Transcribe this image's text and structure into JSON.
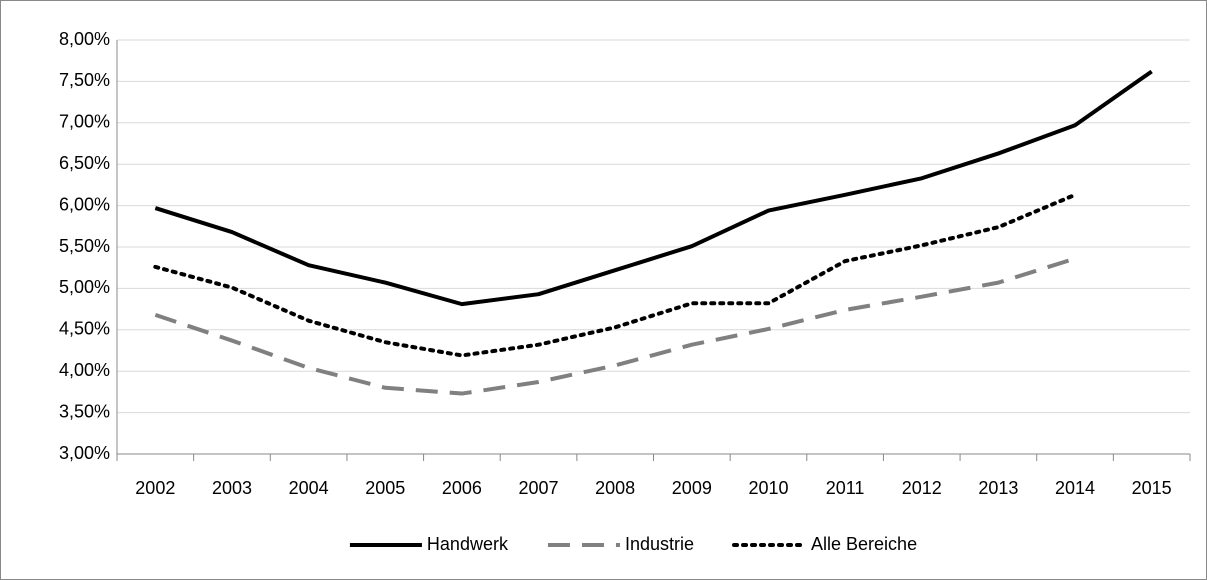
{
  "chart_data": {
    "type": "line",
    "categories": [
      "2002",
      "2003",
      "2004",
      "2005",
      "2006",
      "2007",
      "2008",
      "2009",
      "2010",
      "2011",
      "2012",
      "2013",
      "2014",
      "2015"
    ],
    "series": [
      {
        "name": "Handwerk",
        "color": "#000000",
        "dash": "solid",
        "values": [
          5.97,
          5.68,
          5.28,
          5.07,
          4.81,
          4.93,
          5.22,
          5.51,
          5.94,
          6.13,
          6.33,
          6.63,
          6.97,
          7.62
        ]
      },
      {
        "name": "Industrie",
        "color": "#808080",
        "dash": "dashed",
        "values": [
          4.68,
          4.37,
          4.04,
          3.8,
          3.73,
          3.87,
          4.07,
          4.32,
          4.51,
          4.74,
          4.9,
          5.07,
          5.36,
          null
        ]
      },
      {
        "name": "Alle Bereiche",
        "color": "#000000",
        "dash": "dotted",
        "values": [
          5.26,
          5.01,
          4.61,
          4.35,
          4.19,
          4.32,
          4.53,
          4.82,
          4.82,
          5.33,
          5.52,
          5.74,
          6.13,
          null
        ]
      }
    ],
    "ylim": [
      3,
      8
    ],
    "yticks": [
      {
        "value": 3,
        "label": "3,00%"
      },
      {
        "value": 3.5,
        "label": "3,50%"
      },
      {
        "value": 4,
        "label": "4,00%"
      },
      {
        "value": 4.5,
        "label": "4,50%"
      },
      {
        "value": 5,
        "label": "5,00%"
      },
      {
        "value": 5.5,
        "label": "5,50%"
      },
      {
        "value": 6,
        "label": "6,00%"
      },
      {
        "value": 6.5,
        "label": "6,50%"
      },
      {
        "value": 7,
        "label": "7,00%"
      },
      {
        "value": 7.5,
        "label": "7,50%"
      },
      {
        "value": 8,
        "label": "8,00%"
      }
    ],
    "grid": true,
    "legend": "bottom"
  }
}
